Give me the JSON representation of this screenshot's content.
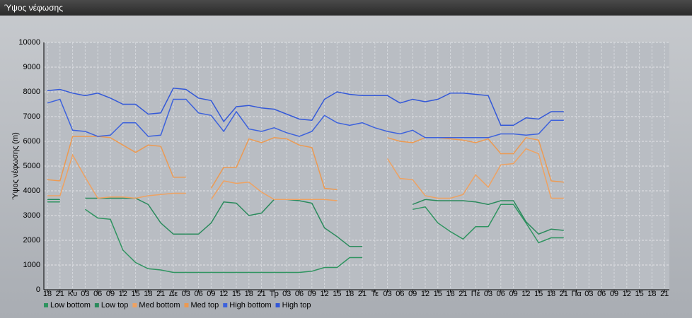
{
  "window_title": "Ύψος νέφωσης",
  "chart_data": {
    "type": "line",
    "y_label": "Ύψος νέφωσης (m)",
    "categories": [
      "18",
      "21",
      "Κυ",
      "03",
      "06",
      "09",
      "12",
      "15",
      "18",
      "21",
      "Δε",
      "03",
      "06",
      "09",
      "12",
      "15",
      "18",
      "21",
      "Τρ",
      "03",
      "06",
      "09",
      "12",
      "15",
      "18",
      "21",
      "Τε",
      "03",
      "06",
      "09",
      "12",
      "15",
      "18",
      "21",
      "Πέ",
      "03",
      "06",
      "09",
      "12",
      "15",
      "18",
      "21",
      "Πα",
      "03",
      "06",
      "09",
      "12",
      "15",
      "18",
      "21"
    ],
    "series": [
      {
        "name": "Low bottom",
        "color": "#2f9460",
        "values": [
          3550,
          3550,
          null,
          3250,
          2900,
          2850,
          1600,
          1100,
          850,
          800,
          700,
          700,
          700,
          700,
          700,
          700,
          700,
          700,
          700,
          700,
          700,
          750,
          900,
          900,
          1300,
          1300,
          null,
          null,
          null,
          3250,
          3350,
          2700,
          2350,
          2050,
          2550,
          2550,
          3450,
          3450,
          2700,
          1900,
          2100,
          2100,
          null,
          null,
          null,
          null,
          null,
          null,
          null,
          null
        ]
      },
      {
        "name": "Low top",
        "color": "#2a8a5c",
        "values": [
          3650,
          3650,
          null,
          3700,
          3700,
          3700,
          3700,
          3700,
          3450,
          2700,
          2250,
          2250,
          2250,
          2700,
          3550,
          3500,
          3000,
          3100,
          3650,
          3650,
          3600,
          3500,
          2500,
          2150,
          1750,
          1750,
          null,
          null,
          null,
          3450,
          3650,
          3600,
          3600,
          3600,
          3550,
          3450,
          3600,
          3600,
          2750,
          2250,
          2450,
          2400,
          null,
          null,
          null,
          null,
          null,
          null,
          null,
          null
        ]
      },
      {
        "name": "Med bottom",
        "color": "#eea262",
        "values": [
          3800,
          3800,
          5450,
          4550,
          3700,
          3750,
          3750,
          3700,
          3800,
          3850,
          3900,
          3900,
          null,
          3650,
          4400,
          4300,
          4350,
          3950,
          3650,
          3650,
          3650,
          3650,
          3650,
          3600,
          null,
          null,
          null,
          5300,
          4500,
          4450,
          3800,
          3700,
          3700,
          3850,
          4650,
          4150,
          5050,
          5100,
          5700,
          5500,
          3700,
          3700,
          null,
          null,
          null,
          null,
          null,
          null,
          null,
          null
        ]
      },
      {
        "name": "Med top",
        "color": "#ec9a52",
        "values": [
          4450,
          4400,
          6200,
          6200,
          6200,
          6150,
          5850,
          5550,
          5850,
          5800,
          4550,
          4550,
          null,
          4100,
          4950,
          4950,
          6100,
          5950,
          6150,
          6100,
          5850,
          5750,
          4100,
          4050,
          null,
          null,
          null,
          6150,
          6000,
          5950,
          6150,
          6150,
          6100,
          6050,
          5950,
          6100,
          5500,
          5500,
          6150,
          6050,
          4400,
          4350,
          null,
          null,
          null,
          null,
          null,
          null,
          null,
          null
        ]
      },
      {
        "name": "High bottom",
        "color": "#3d62dc",
        "values": [
          7550,
          7700,
          6450,
          6400,
          6200,
          6250,
          6750,
          6750,
          6200,
          6250,
          7700,
          7700,
          7150,
          7050,
          6400,
          7200,
          6500,
          6400,
          6550,
          6350,
          6200,
          6400,
          7050,
          6750,
          6650,
          6750,
          6550,
          6400,
          6300,
          6450,
          6150,
          6150,
          6150,
          6150,
          6150,
          6150,
          6300,
          6300,
          6250,
          6300,
          6850,
          6850,
          null,
          null,
          null,
          null,
          null,
          null,
          null,
          null
        ]
      },
      {
        "name": "High top",
        "color": "#3358d8",
        "values": [
          8050,
          8100,
          7950,
          7850,
          7950,
          7750,
          7500,
          7500,
          7100,
          7150,
          8150,
          8100,
          7750,
          7650,
          6800,
          7400,
          7450,
          7350,
          7300,
          7100,
          6900,
          6850,
          7700,
          8000,
          7900,
          7850,
          7850,
          7850,
          7550,
          7700,
          7600,
          7700,
          7950,
          7950,
          7900,
          7850,
          6650,
          6650,
          6950,
          6900,
          7200,
          7200,
          null,
          null,
          null,
          null,
          null,
          null,
          null,
          null
        ]
      }
    ],
    "ylim": [
      0,
      10000
    ],
    "yticks": [
      0,
      1000,
      2000,
      3000,
      4000,
      5000,
      6000,
      7000,
      8000,
      9000,
      10000
    ],
    "grid": true
  }
}
